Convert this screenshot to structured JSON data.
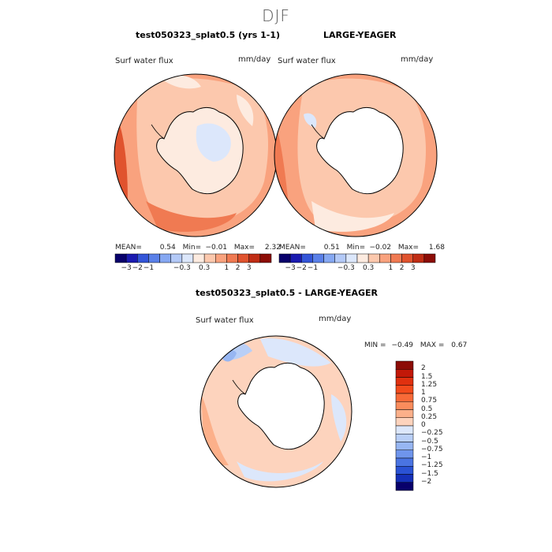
{
  "figure": {
    "season": "DJF"
  },
  "panels": [
    {
      "title": "test050323_splat0.5 (yrs 1-1)",
      "variable": "Surf water flux",
      "units": "mm/day",
      "stats": {
        "mean_label": "MEAN=",
        "mean": "0.54",
        "min_label": "Min=",
        "min": "−0.01",
        "max_label": "Max=",
        "max": "2.32"
      }
    },
    {
      "title": "LARGE-YEAGER",
      "variable": "Surf water flux",
      "units": "mm/day",
      "stats": {
        "mean_label": "MEAN=",
        "mean": "0.51",
        "min_label": "Min=",
        "min": "−0.02",
        "max_label": "Max=",
        "max": "1.68"
      }
    },
    {
      "title": "test050323_splat0.5 - LARGE-YEAGER",
      "variable": "Surf water flux",
      "units": "mm/day",
      "stats": {
        "min_label": "MIN =",
        "min": "−0.49",
        "max_label": "MAX =",
        "max": "0.67"
      }
    }
  ],
  "colorbar_top": {
    "ticks": [
      "−3",
      "−2",
      "−1",
      "−0.3",
      "0.3",
      "1",
      "2",
      "3"
    ],
    "colors": [
      "#08006b",
      "#1a1ab0",
      "#3355d8",
      "#5a80e8",
      "#86a8f2",
      "#b3c9f7",
      "#dce7fb",
      "#fdebe0",
      "#fcc8ad",
      "#f9a27e",
      "#f07a52",
      "#e0532e",
      "#c02d14",
      "#8c0c06"
    ]
  },
  "colorbar_diff": {
    "ticks": [
      "2",
      "1.5",
      "1.25",
      "1",
      "0.75",
      "0.5",
      "0.25",
      "0",
      "−0.25",
      "−0.5",
      "−0.75",
      "−1",
      "−1.25",
      "−1.5",
      "−2"
    ],
    "colors": [
      "#8c0c06",
      "#c21808",
      "#e0300f",
      "#f24a1c",
      "#f86a38",
      "#fa8c5c",
      "#fcb08a",
      "#fdd3bd",
      "#dce7fb",
      "#b9cff7",
      "#97b6f2",
      "#6f95ec",
      "#4a74e2",
      "#2a52d4",
      "#1530b8",
      "#08006b"
    ]
  },
  "chart_data": [
    {
      "type": "heatmap",
      "projection": "south polar stereographic",
      "title": "test050323_splat0.5 (yrs 1-1)",
      "variable": "Surf water flux",
      "units": "mm/day",
      "mean": 0.54,
      "min": -0.01,
      "max": 2.32,
      "contour_levels": [
        -3,
        -2,
        -1,
        -0.3,
        0.3,
        1,
        2,
        3
      ]
    },
    {
      "type": "heatmap",
      "projection": "south polar stereographic",
      "title": "LARGE-YEAGER",
      "variable": "Surf water flux",
      "units": "mm/day",
      "mean": 0.51,
      "min": -0.02,
      "max": 1.68,
      "contour_levels": [
        -3,
        -2,
        -1,
        -0.3,
        0.3,
        1,
        2,
        3
      ]
    },
    {
      "type": "heatmap",
      "projection": "south polar stereographic",
      "title": "test050323_splat0.5 - LARGE-YEAGER",
      "variable": "Surf water flux",
      "units": "mm/day",
      "min": -0.49,
      "max": 0.67,
      "contour_levels": [
        -2,
        -1.5,
        -1.25,
        -1,
        -0.75,
        -0.5,
        -0.25,
        0,
        0.25,
        0.5,
        0.75,
        1,
        1.25,
        1.5,
        2
      ]
    }
  ]
}
